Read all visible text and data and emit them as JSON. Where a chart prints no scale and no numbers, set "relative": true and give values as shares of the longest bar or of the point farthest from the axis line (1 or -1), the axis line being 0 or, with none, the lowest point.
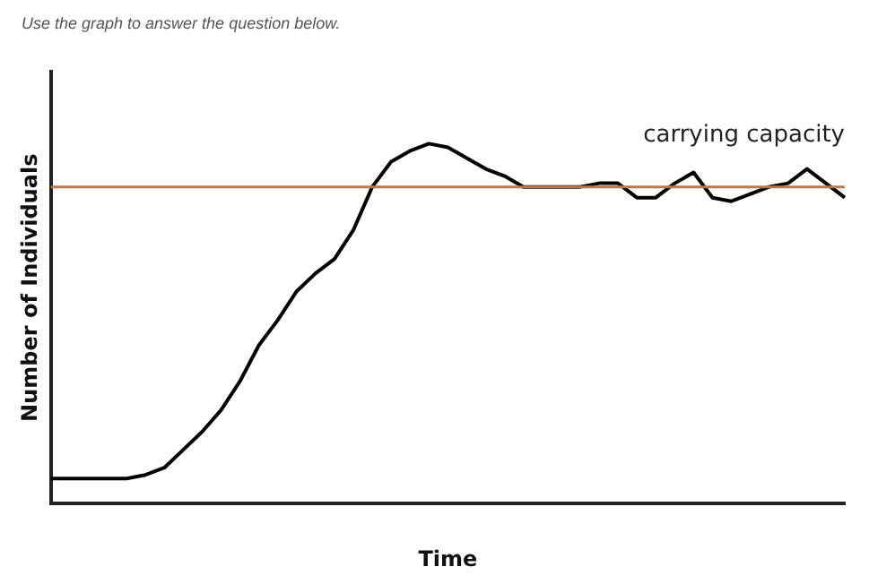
{
  "chart_data": {
    "type": "line",
    "relative": true,
    "xlabel": "Time",
    "ylabel": "Number of Individuals",
    "annotations": [
      "Use the graph to answer the question below."
    ],
    "categories": [
      null,
      null,
      null,
      null,
      null,
      null,
      null,
      null,
      null,
      null,
      null,
      null,
      null,
      null,
      null,
      null,
      null,
      null,
      null,
      null,
      null,
      null,
      null,
      null,
      null,
      null,
      null,
      null,
      null,
      null,
      null,
      null,
      null,
      null,
      null,
      null,
      null,
      null,
      null,
      null,
      null,
      null,
      null
    ],
    "series": [
      {
        "color": "#000000",
        "values": [
          0.07,
          0.07,
          0.07,
          0.07,
          0.07,
          0.08,
          0.1,
          0.15,
          0.2,
          0.26,
          0.34,
          0.44,
          0.51,
          0.59,
          0.64,
          0.68,
          0.76,
          0.88,
          0.95,
          0.98,
          1,
          0.99,
          0.96,
          0.93,
          0.91,
          0.88,
          0.88,
          0.88,
          0.88,
          0.89,
          0.89,
          0.85,
          0.85,
          0.89,
          0.92,
          0.85,
          0.84,
          0.86,
          0.88,
          0.89,
          0.93,
          0.89,
          0.85
        ]
      }
    ],
    "ref_lines": [
      {
        "axis": "y",
        "value": 0.88,
        "label": "carrying capacity",
        "color": "#c8743a"
      }
    ],
    "grid": false,
    "legend": false
  }
}
